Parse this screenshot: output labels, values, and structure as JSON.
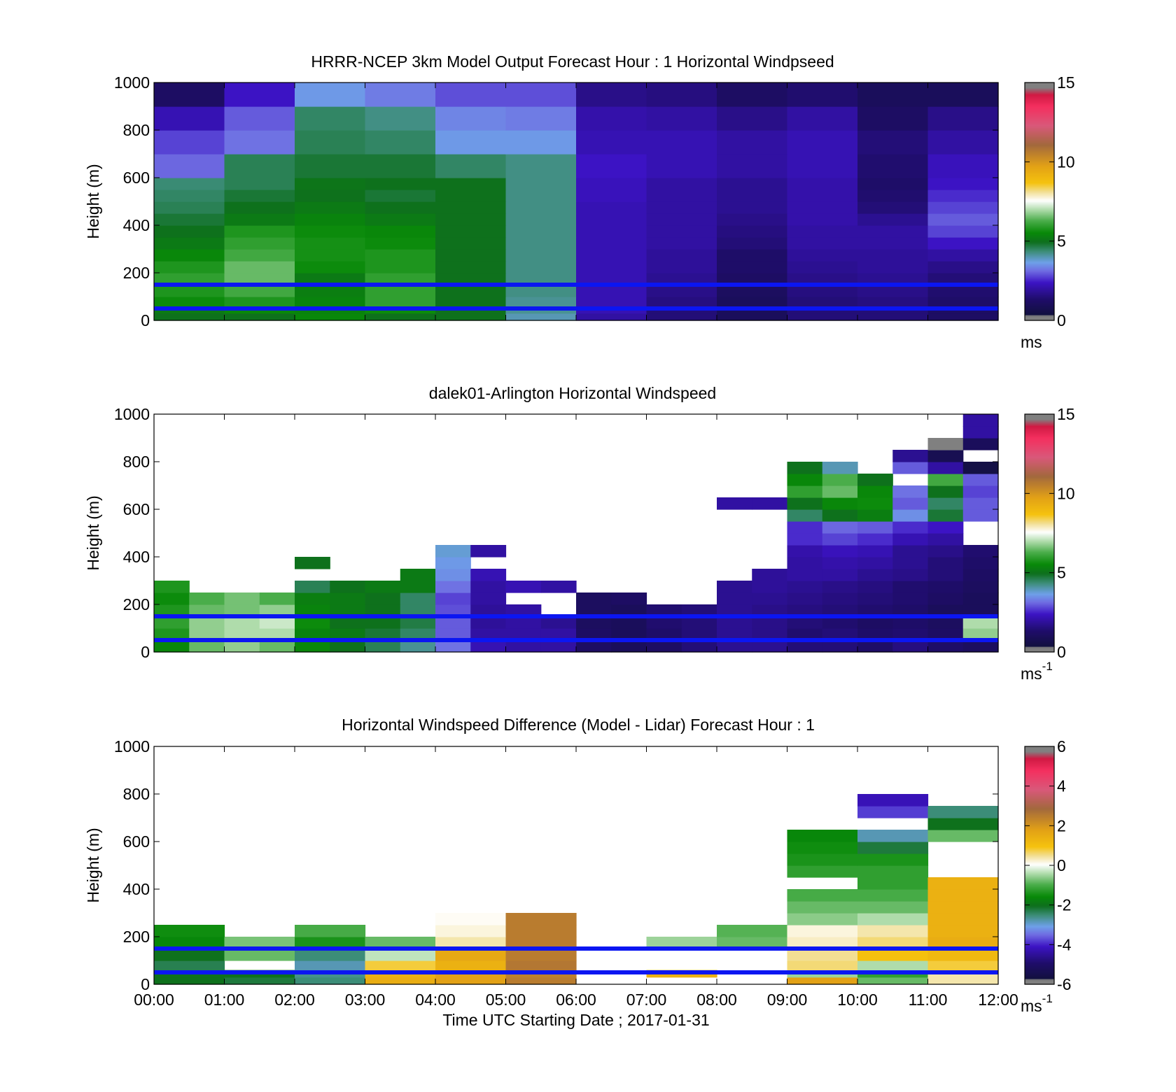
{
  "figure": {
    "xlabel": "Time UTC  Starting Date ; 2017-01-31",
    "x_tick_labels": [
      "00:00",
      "01:00",
      "02:00",
      "03:00",
      "04:00",
      "05:00",
      "06:00",
      "07:00",
      "08:00",
      "09:00",
      "10:00",
      "11:00",
      "12:00"
    ]
  },
  "chart_data": [
    {
      "type": "heatmap",
      "title": "HRRR-NCEP 3km Model Output   Forecast Hour : 1 Horizontal Windpseed",
      "ylabel": "Height (m)",
      "ylim": [
        0,
        1000
      ],
      "xlim_hours": [
        0,
        12
      ],
      "y_ticks": [
        "0",
        "200",
        "400",
        "600",
        "800",
        "1000"
      ],
      "colorbar": {
        "ticks": [
          "0",
          "5",
          "10",
          "15"
        ],
        "range": [
          0,
          15
        ],
        "unit": "ms",
        "unit_sup": ""
      },
      "reference_lines_m": [
        150,
        50
      ],
      "x_hours": [
        0,
        1,
        2,
        3,
        4,
        5,
        6,
        7,
        8,
        9,
        10,
        11
      ],
      "heights_m": [
        0,
        30,
        60,
        100,
        150,
        200,
        250,
        300,
        350,
        400,
        450,
        500,
        550,
        600,
        700,
        800,
        900,
        1000
      ],
      "values": [
        [
          5.0,
          5.0,
          5.5,
          5.0,
          5.0,
          4.0,
          2.0,
          1.5,
          1.0,
          1.5,
          1.5,
          1.2
        ],
        [
          5.2,
          5.5,
          5.4,
          5.6,
          5.0,
          4.2,
          2.2,
          1.5,
          1.0,
          1.5,
          1.5,
          1.2
        ],
        [
          5.6,
          5.8,
          5.4,
          6.0,
          5.0,
          4.2,
          2.2,
          1.6,
          1.0,
          1.5,
          1.6,
          1.3
        ],
        [
          5.8,
          6.2,
          5.3,
          6.0,
          5.0,
          4.3,
          2.2,
          1.7,
          1.1,
          1.6,
          1.7,
          1.4
        ],
        [
          6.0,
          6.5,
          5.2,
          6.0,
          5.0,
          4.3,
          2.2,
          1.8,
          1.2,
          1.7,
          1.8,
          1.5
        ],
        [
          5.8,
          6.5,
          5.6,
          5.8,
          5.0,
          4.3,
          2.2,
          1.9,
          1.3,
          1.8,
          1.9,
          1.7
        ],
        [
          5.5,
          6.2,
          5.7,
          5.8,
          5.0,
          4.3,
          2.2,
          1.9,
          1.3,
          1.9,
          1.9,
          2.0
        ],
        [
          5.2,
          6.0,
          5.7,
          5.6,
          5.0,
          4.3,
          2.2,
          2.0,
          1.5,
          2.0,
          2.0,
          2.4
        ],
        [
          5.0,
          5.8,
          5.6,
          5.5,
          5.0,
          4.3,
          2.2,
          2.0,
          1.6,
          2.0,
          2.0,
          2.8
        ],
        [
          4.8,
          5.2,
          5.4,
          5.2,
          5.0,
          4.3,
          2.2,
          2.0,
          1.7,
          2.1,
          1.8,
          3.0
        ],
        [
          4.6,
          5.0,
          5.2,
          5.0,
          5.0,
          4.3,
          2.2,
          2.0,
          1.8,
          2.1,
          1.5,
          2.8
        ],
        [
          4.5,
          4.8,
          5.0,
          4.8,
          5.0,
          4.3,
          2.3,
          2.0,
          1.8,
          2.1,
          1.4,
          2.6
        ],
        [
          4.4,
          4.6,
          5.1,
          5.0,
          5.0,
          4.3,
          2.3,
          2.0,
          1.8,
          2.1,
          1.3,
          2.4
        ],
        [
          3.1,
          4.6,
          4.8,
          4.8,
          4.5,
          4.3,
          2.4,
          2.2,
          2.0,
          2.2,
          1.4,
          2.3
        ],
        [
          2.8,
          3.2,
          4.6,
          4.5,
          3.6,
          3.6,
          2.2,
          2.2,
          2.0,
          2.2,
          1.5,
          2.0
        ],
        [
          2.2,
          3.0,
          4.5,
          4.3,
          3.4,
          3.3,
          2.1,
          2.0,
          1.7,
          2.0,
          1.2,
          1.7
        ],
        [
          1.2,
          2.4,
          3.6,
          3.3,
          2.9,
          2.9,
          1.7,
          1.6,
          1.2,
          1.4,
          1.0,
          1.0
        ]
      ]
    },
    {
      "type": "heatmap",
      "title": "dalek01-Arlington  Horizontal Windspeed",
      "ylabel": "Height (m)",
      "ylim": [
        0,
        1000
      ],
      "xlim_hours": [
        0,
        12
      ],
      "y_ticks": [
        "0",
        "200",
        "400",
        "600",
        "800",
        "1000"
      ],
      "colorbar": {
        "ticks": [
          "0",
          "5",
          "10",
          "15"
        ],
        "range": [
          0,
          15
        ],
        "unit": "ms",
        "unit_sup": "-1"
      },
      "reference_lines_m": [
        150,
        50
      ],
      "x_hours": [
        0,
        0.5,
        1,
        1.5,
        2,
        2.5,
        3,
        3.5,
        4,
        4.5,
        5,
        5.5,
        6,
        6.5,
        7,
        7.5,
        8,
        8.5,
        9,
        9.5,
        10,
        10.5,
        11,
        11.5
      ],
      "heights_m": [
        0,
        50,
        100,
        150,
        200,
        250,
        300,
        350,
        400,
        450,
        500,
        550,
        600,
        650,
        700,
        750,
        800,
        850,
        900,
        950,
        1000
      ],
      "values": [
        [
          5.5,
          6.5,
          6.8,
          6.5,
          5.5,
          5.0,
          4.6,
          4.2,
          3.2,
          2.2,
          2.0,
          2.0,
          1.2,
          1.0,
          1.2,
          1.5,
          1.8,
          1.8,
          1.5,
          1.5,
          1.3,
          1.6,
          1.3,
          1.1
        ],
        [
          5.8,
          6.8,
          7.0,
          7.0,
          5.4,
          5.2,
          4.8,
          4.5,
          3.0,
          2.0,
          2.0,
          2.0,
          1.2,
          1.0,
          1.3,
          1.5,
          1.8,
          1.7,
          1.4,
          1.5,
          1.3,
          1.4,
          1.2,
          6.8
        ],
        [
          6.0,
          6.8,
          7.0,
          7.2,
          5.6,
          5.0,
          5.0,
          4.7,
          3.0,
          1.9,
          2.0,
          1.8,
          1.1,
          1.0,
          1.4,
          1.5,
          1.8,
          1.7,
          1.5,
          1.4,
          1.2,
          1.3,
          1.1,
          7.0
        ],
        [
          5.8,
          6.5,
          6.6,
          6.8,
          5.4,
          5.2,
          5.0,
          4.5,
          2.9,
          1.9,
          2.0,
          null,
          1.1,
          1.0,
          1.4,
          1.5,
          1.8,
          1.7,
          1.6,
          1.5,
          1.4,
          1.3,
          1.0,
          1.0
        ],
        [
          5.6,
          6.3,
          6.6,
          6.3,
          5.3,
          5.2,
          5.0,
          4.5,
          2.8,
          2.0,
          null,
          null,
          1.1,
          1.2,
          null,
          null,
          1.8,
          1.8,
          1.7,
          1.6,
          1.5,
          1.4,
          1.2,
          1.0
        ],
        [
          5.8,
          null,
          null,
          null,
          4.6,
          5.0,
          5.2,
          5.2,
          3.2,
          2.0,
          2.2,
          2.0,
          null,
          null,
          null,
          null,
          1.8,
          1.9,
          1.8,
          1.7,
          1.6,
          1.4,
          1.3,
          1.1
        ],
        [
          null,
          null,
          null,
          null,
          null,
          null,
          null,
          5.2,
          3.5,
          2.2,
          null,
          null,
          null,
          null,
          null,
          null,
          null,
          1.9,
          2.0,
          2.0,
          1.8,
          1.7,
          1.5,
          1.2
        ],
        [
          null,
          null,
          null,
          null,
          5.0,
          null,
          null,
          null,
          3.6,
          null,
          null,
          null,
          null,
          null,
          null,
          null,
          null,
          null,
          2.0,
          2.1,
          2.0,
          1.8,
          1.5,
          1.3
        ],
        [
          null,
          null,
          null,
          null,
          null,
          null,
          null,
          null,
          3.8,
          2.0,
          null,
          null,
          null,
          null,
          null,
          null,
          null,
          null,
          2.1,
          2.3,
          2.2,
          1.8,
          1.7,
          1.4
        ],
        [
          null,
          null,
          null,
          null,
          null,
          null,
          null,
          null,
          null,
          null,
          null,
          null,
          null,
          null,
          null,
          null,
          null,
          null,
          2.6,
          2.8,
          2.6,
          2.2,
          2.0,
          null
        ],
        [
          null,
          null,
          null,
          null,
          null,
          null,
          null,
          null,
          null,
          null,
          null,
          null,
          null,
          null,
          null,
          null,
          null,
          null,
          2.6,
          3.1,
          3.0,
          2.6,
          2.4,
          null
        ],
        [
          null,
          null,
          null,
          null,
          null,
          null,
          null,
          null,
          null,
          null,
          null,
          null,
          null,
          null,
          null,
          null,
          null,
          null,
          4.5,
          5.0,
          5.3,
          3.5,
          4.8,
          3.0
        ],
        [
          null,
          null,
          null,
          null,
          null,
          null,
          null,
          null,
          null,
          null,
          null,
          null,
          null,
          null,
          null,
          null,
          2.0,
          2.0,
          5.0,
          5.5,
          5.6,
          3.0,
          4.5,
          3.0
        ],
        [
          null,
          null,
          null,
          null,
          null,
          null,
          null,
          null,
          null,
          null,
          null,
          null,
          null,
          null,
          null,
          null,
          null,
          null,
          6.0,
          6.5,
          5.5,
          3.2,
          5.0,
          2.8
        ],
        [
          null,
          null,
          null,
          null,
          null,
          null,
          null,
          null,
          null,
          null,
          null,
          null,
          null,
          null,
          null,
          null,
          null,
          null,
          5.5,
          6.3,
          5.0,
          null,
          6.2,
          3.0
        ],
        [
          null,
          null,
          null,
          null,
          null,
          null,
          null,
          null,
          null,
          null,
          null,
          null,
          null,
          null,
          null,
          null,
          null,
          null,
          5.0,
          4.0,
          null,
          3.0,
          2.0,
          0.5
        ],
        [
          null,
          null,
          null,
          null,
          null,
          null,
          null,
          null,
          null,
          null,
          null,
          null,
          null,
          null,
          null,
          null,
          null,
          null,
          null,
          null,
          null,
          1.8,
          0.8,
          null
        ],
        [
          null,
          null,
          null,
          null,
          null,
          null,
          null,
          null,
          null,
          null,
          null,
          null,
          null,
          null,
          null,
          null,
          null,
          null,
          null,
          null,
          null,
          null,
          15.0,
          1.0
        ],
        [
          null,
          null,
          null,
          null,
          null,
          null,
          null,
          null,
          null,
          null,
          null,
          null,
          null,
          null,
          null,
          null,
          null,
          null,
          null,
          null,
          null,
          null,
          null,
          2.0
        ],
        [
          null,
          null,
          null,
          null,
          null,
          null,
          null,
          null,
          null,
          null,
          null,
          null,
          null,
          null,
          null,
          null,
          null,
          null,
          null,
          null,
          null,
          null,
          null,
          2.0
        ]
      ]
    },
    {
      "type": "heatmap",
      "title": "Horizontal Windspeed Difference (Model - Lidar) Forecast Hour : 1",
      "ylabel": "Height (m)",
      "ylim": [
        0,
        1000
      ],
      "xlim_hours": [
        0,
        12
      ],
      "y_ticks": [
        "0",
        "200",
        "400",
        "600",
        "800",
        "1000"
      ],
      "colorbar": {
        "ticks": [
          "-6",
          "-4",
          "-2",
          "0",
          "2",
          "4",
          "6"
        ],
        "range": [
          -6,
          6
        ],
        "unit": "ms",
        "unit_sup": "-1"
      },
      "reference_lines_m": [
        150,
        50
      ],
      "x_hours": [
        0,
        1,
        2,
        3,
        4,
        5,
        6,
        7,
        8,
        9,
        10,
        11
      ],
      "heights_m": [
        0,
        30,
        60,
        100,
        150,
        200,
        250,
        300,
        350,
        400,
        450,
        500,
        550,
        600,
        650,
        700,
        750,
        800
      ],
      "values": [
        [
          -2.0,
          -2.2,
          -2.5,
          1.5,
          1.8,
          2.5,
          null,
          null,
          null,
          1.8,
          -0.8,
          0.4
        ],
        [
          -2.0,
          -2.0,
          -2.6,
          1.4,
          1.8,
          2.4,
          null,
          1.4,
          null,
          -0.5,
          -1.2,
          0.4
        ],
        [
          -2.3,
          null,
          -2.8,
          0.8,
          1.4,
          2.6,
          null,
          null,
          null,
          0.6,
          -0.4,
          0.8
        ],
        [
          -2.0,
          -0.8,
          -2.5,
          -0.3,
          1.6,
          2.5,
          null,
          null,
          null,
          0.5,
          1.0,
          1.2
        ],
        [
          -1.6,
          -0.7,
          -1.4,
          -0.8,
          0.4,
          2.5,
          null,
          -0.5,
          -0.8,
          0.3,
          0.6,
          1.5
        ],
        [
          -1.5,
          null,
          -1.0,
          null,
          0.2,
          2.5,
          null,
          null,
          -0.9,
          0.2,
          0.4,
          1.4
        ],
        [
          null,
          null,
          null,
          null,
          0.1,
          2.5,
          null,
          null,
          null,
          -0.6,
          -0.4,
          1.4
        ],
        [
          null,
          null,
          null,
          null,
          null,
          null,
          null,
          null,
          null,
          -0.8,
          -0.8,
          1.4
        ],
        [
          null,
          null,
          null,
          null,
          null,
          null,
          null,
          null,
          null,
          -1.0,
          -1.0,
          1.4
        ],
        [
          null,
          null,
          null,
          null,
          null,
          null,
          null,
          null,
          null,
          null,
          -1.2,
          1.4
        ],
        [
          null,
          null,
          null,
          null,
          null,
          null,
          null,
          null,
          null,
          -1.2,
          -1.2,
          null
        ],
        [
          null,
          null,
          null,
          null,
          null,
          null,
          null,
          null,
          null,
          -1.4,
          -1.4,
          null
        ],
        [
          null,
          null,
          null,
          null,
          null,
          null,
          null,
          null,
          null,
          -1.5,
          -2.2,
          null
        ],
        [
          null,
          null,
          null,
          null,
          null,
          null,
          null,
          null,
          null,
          -1.6,
          -2.8,
          -0.8
        ],
        [
          null,
          null,
          null,
          null,
          null,
          null,
          null,
          null,
          null,
          null,
          null,
          -2.0
        ],
        [
          null,
          null,
          null,
          null,
          null,
          null,
          null,
          null,
          null,
          null,
          -3.8,
          -2.5
        ],
        [
          null,
          null,
          null,
          null,
          null,
          null,
          null,
          null,
          null,
          null,
          -4.2,
          null
        ]
      ]
    }
  ]
}
